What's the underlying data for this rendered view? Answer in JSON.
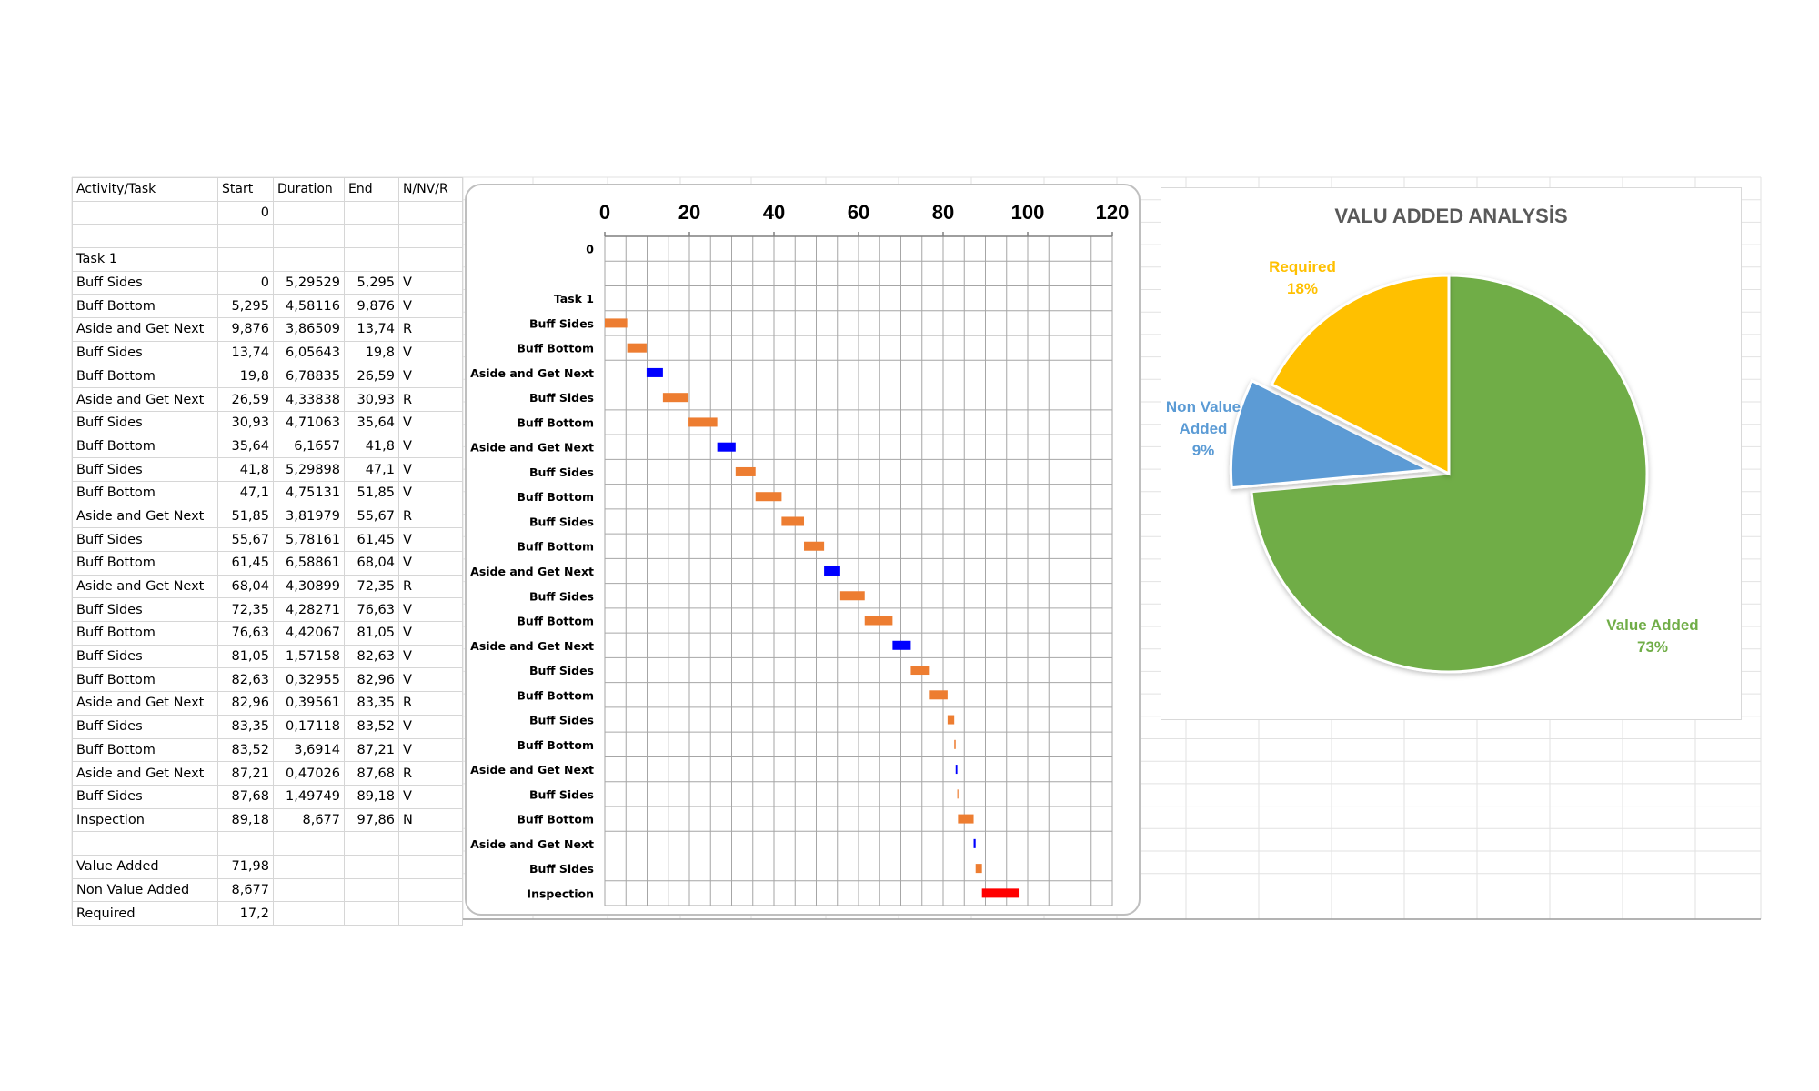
{
  "table": {
    "headers": [
      "Activity/Task",
      "Start",
      "Duration",
      "End",
      "N/NV/R"
    ],
    "rows": [
      [
        "",
        "0",
        "",
        "",
        ""
      ],
      [
        "",
        "",
        "",
        "",
        ""
      ],
      [
        "Task 1",
        "",
        "",
        "",
        ""
      ],
      [
        "Buff Sides",
        "0",
        "5,29529",
        "5,295",
        "V"
      ],
      [
        "Buff Bottom",
        "5,295",
        "4,58116",
        "9,876",
        "V"
      ],
      [
        "Aside and Get Next",
        "9,876",
        "3,86509",
        "13,74",
        "R"
      ],
      [
        "Buff Sides",
        "13,74",
        "6,05643",
        "19,8",
        "V"
      ],
      [
        "Buff Bottom",
        "19,8",
        "6,78835",
        "26,59",
        "V"
      ],
      [
        "Aside and Get Next",
        "26,59",
        "4,33838",
        "30,93",
        "R"
      ],
      [
        "Buff Sides",
        "30,93",
        "4,71063",
        "35,64",
        "V"
      ],
      [
        "Buff Bottom",
        "35,64",
        "6,1657",
        "41,8",
        "V"
      ],
      [
        "Buff Sides",
        "41,8",
        "5,29898",
        "47,1",
        "V"
      ],
      [
        "Buff Bottom",
        "47,1",
        "4,75131",
        "51,85",
        "V"
      ],
      [
        "Aside and Get Next",
        "51,85",
        "3,81979",
        "55,67",
        "R"
      ],
      [
        "Buff Sides",
        "55,67",
        "5,78161",
        "61,45",
        "V"
      ],
      [
        "Buff Bottom",
        "61,45",
        "6,58861",
        "68,04",
        "V"
      ],
      [
        "Aside and Get Next",
        "68,04",
        "4,30899",
        "72,35",
        "R"
      ],
      [
        "Buff Sides",
        "72,35",
        "4,28271",
        "76,63",
        "V"
      ],
      [
        "Buff Bottom",
        "76,63",
        "4,42067",
        "81,05",
        "V"
      ],
      [
        "Buff Sides",
        "81,05",
        "1,57158",
        "82,63",
        "V"
      ],
      [
        "Buff Bottom",
        "82,63",
        "0,32955",
        "82,96",
        "V"
      ],
      [
        "Aside and Get Next",
        "82,96",
        "0,39561",
        "83,35",
        "R"
      ],
      [
        "Buff Sides",
        "83,35",
        "0,17118",
        "83,52",
        "V"
      ],
      [
        "Buff Bottom",
        "83,52",
        "3,6914",
        "87,21",
        "V"
      ],
      [
        "Aside and Get Next",
        "87,21",
        "0,47026",
        "87,68",
        "R"
      ],
      [
        "Buff Sides",
        "87,68",
        "1,49749",
        "89,18",
        "V"
      ],
      [
        "Inspection",
        "89,18",
        "8,677",
        "97,86",
        "N"
      ],
      [
        "",
        "",
        "",
        "",
        ""
      ],
      [
        "Value Added",
        "71,98",
        "",
        "",
        ""
      ],
      [
        "Non Value Added",
        "8,677",
        "",
        "",
        ""
      ],
      [
        "Required",
        "17,2",
        "",
        "",
        ""
      ]
    ]
  },
  "chart_data": [
    {
      "type": "bar",
      "orientation": "horizontal-gantt",
      "categories": [
        "0",
        "",
        "Task 1",
        "Buff Sides",
        "Buff Bottom",
        "Aside and Get Next",
        "Buff Sides",
        "Buff Bottom",
        "Aside and Get Next",
        "Buff Sides",
        "Buff Bottom",
        "Buff Sides",
        "Buff Bottom",
        "Aside and Get Next",
        "Buff Sides",
        "Buff Bottom",
        "Aside and Get Next",
        "Buff Sides",
        "Buff Bottom",
        "Buff Sides",
        "Buff Bottom",
        "Aside and Get Next",
        "Buff Sides",
        "Buff Bottom",
        "Aside and Get Next",
        "Buff Sides",
        "Inspection"
      ],
      "start": [
        null,
        null,
        null,
        0,
        5.295,
        9.876,
        13.74,
        19.8,
        26.59,
        30.93,
        35.64,
        41.8,
        47.1,
        51.85,
        55.67,
        61.45,
        68.04,
        72.35,
        76.63,
        81.05,
        82.63,
        82.96,
        83.35,
        83.52,
        87.21,
        87.68,
        89.18
      ],
      "duration": [
        null,
        null,
        null,
        5.29529,
        4.58116,
        3.86509,
        6.05643,
        6.78835,
        4.33838,
        4.71063,
        6.1657,
        5.29898,
        4.75131,
        3.81979,
        5.78161,
        6.58861,
        4.30899,
        4.28271,
        4.42067,
        1.57158,
        0.32955,
        0.39561,
        0.17118,
        3.6914,
        0.47026,
        1.49749,
        8.677
      ],
      "class": [
        null,
        null,
        null,
        "V",
        "V",
        "R",
        "V",
        "V",
        "R",
        "V",
        "V",
        "V",
        "V",
        "R",
        "V",
        "V",
        "R",
        "V",
        "V",
        "V",
        "V",
        "R",
        "V",
        "V",
        "R",
        "V",
        "N"
      ],
      "colors": {
        "V": "#ed7d31",
        "R": "#0000ff",
        "N": "#ff0000"
      },
      "x_ticks": [
        "0",
        "20",
        "40",
        "60",
        "80",
        "100",
        "120"
      ],
      "xlim": [
        0,
        120
      ],
      "x_axis_position": "top",
      "grid": true
    },
    {
      "type": "pie",
      "title": "VALU ADDED ANALYSİS",
      "slices": [
        {
          "name": "Value Added",
          "value": 71.98,
          "percent": "73%",
          "color": "#70ad47"
        },
        {
          "name": "Non Value Added",
          "value": 8.677,
          "percent": "9%",
          "color": "#5b9bd5",
          "exploded": true
        },
        {
          "name": "Required",
          "value": 17.2,
          "percent": "18%",
          "color": "#ffc000"
        }
      ]
    }
  ]
}
